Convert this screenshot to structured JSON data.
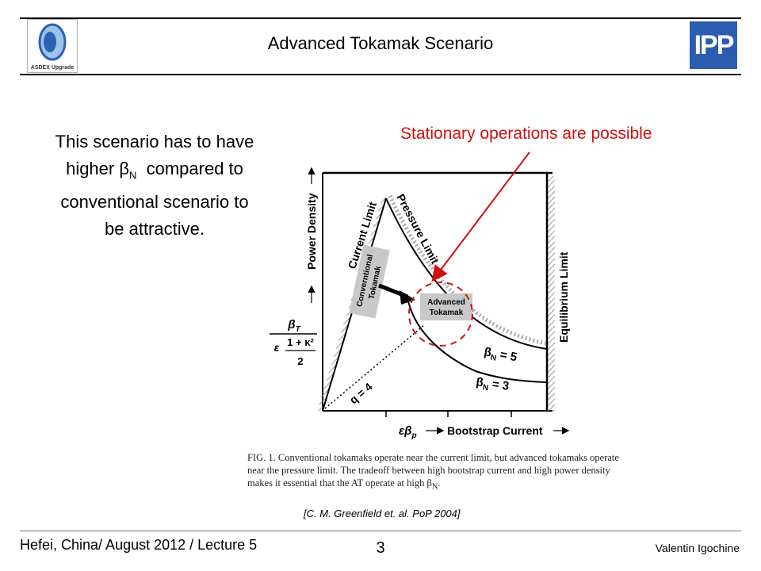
{
  "header": {
    "title": "Advanced Tokamak Scenario",
    "left_logo_caption": "ASDEX Upgrade",
    "right_logo_text": "IPP"
  },
  "left_text": {
    "line1": "This scenario has to have",
    "line2_pre": "higher β",
    "line2_sub": "N",
    "line2_post": "  compared to",
    "line3": "conventional scenario to",
    "line4": "be attractive."
  },
  "callout": "Stationary operations are possible",
  "figure": {
    "y_axis_label": "Power Density",
    "y_ratio_top": "β",
    "y_ratio_top_sub": "T",
    "y_ratio_mid": "1 + κ²",
    "y_ratio_eps": "ε",
    "y_ratio_den": "2",
    "x_axis_label": "εβ",
    "x_axis_label_sub": "p",
    "x_axis_label_right": "Bootstrap Current",
    "current_limit": "Current Limit",
    "pressure_limit": "Pressure Limit",
    "equilibrium_limit": "Equilibrium Limit",
    "conventional_line1": "Converntional",
    "conventional_line2": "Tokamak",
    "advanced_line1": "Advanced",
    "advanced_line2": "Tokamak",
    "betaN5": "β",
    "betaN5_sub": "N",
    "betaN5_val": " = 5",
    "betaN3": "β",
    "betaN3_sub": "N",
    "betaN3_val": " = 3",
    "q_label": "q",
    "q_val": " = 4"
  },
  "caption": {
    "text": "FIG. 1. Conventional tokamaks operate near the current limit, but advanced tokamaks operate near the pressure limit. The tradeoff between high bootstrap current and high power density makes it essential that the AT operate at high β",
    "text_sub": "N",
    "text_end": "."
  },
  "citation": "[C. M. Greenfield et. al. PoP 2004]",
  "footer": {
    "left": "Hefei, China/ August 2012 / Lecture 5",
    "page": "3",
    "right": "Valentin Igochine"
  }
}
